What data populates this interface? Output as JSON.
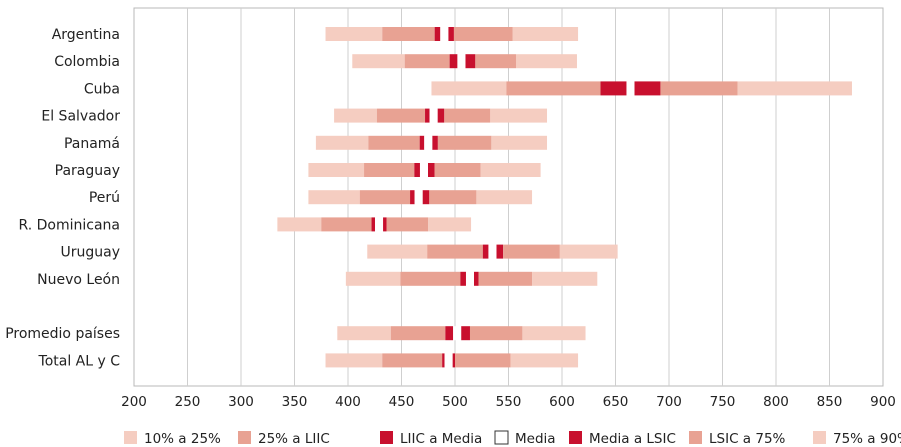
{
  "chart_data": {
    "type": "bar",
    "subtype": "horizontal-stacked-percentile",
    "xlim": [
      200,
      900
    ],
    "xticks": [
      "200",
      "250",
      "300",
      "350",
      "400",
      "450",
      "500",
      "550",
      "600",
      "650",
      "700",
      "750",
      "800",
      "850",
      "900"
    ],
    "grid": true,
    "legend_position": "bottom",
    "categories": [
      "Argentina",
      "Colombia",
      "Cuba",
      "El Salvador",
      "Panamá",
      "Paraguay",
      "Perú",
      "R. Dominicana",
      "Uruguay",
      "Nuevo León",
      "",
      "Promedio países",
      "Total AL y C"
    ],
    "rows": [
      {
        "label": "Argentina",
        "p10": 379,
        "p25": 432,
        "liic": 481,
        "mean": 490,
        "lsic": 499,
        "p75": 554,
        "p90": 615
      },
      {
        "label": "Colombia",
        "p10": 404,
        "p25": 453,
        "liic": 495,
        "mean": 506,
        "lsic": 519,
        "p75": 557,
        "p90": 614
      },
      {
        "label": "Cuba",
        "p10": 478,
        "p25": 548,
        "liic": 636,
        "mean": 664,
        "lsic": 692,
        "p75": 764,
        "p90": 871
      },
      {
        "label": "El Salvador",
        "p10": 387,
        "p25": 427,
        "liic": 472,
        "mean": 480,
        "lsic": 490,
        "p75": 533,
        "p90": 586
      },
      {
        "label": "Panamá",
        "p10": 370,
        "p25": 419,
        "liic": 467,
        "mean": 475,
        "lsic": 484,
        "p75": 534,
        "p90": 586
      },
      {
        "label": "Paraguay",
        "p10": 363,
        "p25": 415,
        "liic": 462,
        "mean": 471,
        "lsic": 481,
        "p75": 524,
        "p90": 580
      },
      {
        "label": "Perú",
        "p10": 363,
        "p25": 411,
        "liic": 458,
        "mean": 466,
        "lsic": 476,
        "p75": 520,
        "p90": 572
      },
      {
        "label": "R. Dominicana",
        "p10": 334,
        "p25": 375,
        "liic": 422,
        "mean": 429,
        "lsic": 436,
        "p75": 475,
        "p90": 515
      },
      {
        "label": "Uruguay",
        "p10": 418,
        "p25": 474,
        "liic": 526,
        "mean": 535,
        "lsic": 545,
        "p75": 598,
        "p90": 652
      },
      {
        "label": "Nuevo León",
        "p10": 398,
        "p25": 449,
        "liic": 505,
        "mean": 514,
        "lsic": 522,
        "p75": 572,
        "p90": 633
      },
      null,
      {
        "label": "Promedio países",
        "p10": 390,
        "p25": 440,
        "liic": 491,
        "mean": 502,
        "lsic": 514,
        "p75": 563,
        "p90": 622
      },
      {
        "label": "Total AL y C",
        "p10": 379,
        "p25": 432,
        "liic": 488,
        "mean": 494,
        "lsic": 500,
        "p75": 552,
        "p90": 615
      }
    ],
    "legend": [
      {
        "label": "10% a 25%",
        "color": "#f5cdc1",
        "kind": "fill"
      },
      {
        "label": "25% a LIIC",
        "color": "#e8a293",
        "kind": "fill"
      },
      {
        "label": "LIIC a Media",
        "color": "#c8102e",
        "kind": "fill"
      },
      {
        "label": "Media",
        "color": "#ffffff",
        "kind": "outline"
      },
      {
        "label": "Media a LSIC",
        "color": "#c8102e",
        "kind": "fill"
      },
      {
        "label": "LSIC a 75%",
        "color": "#e8a293",
        "kind": "fill"
      },
      {
        "label": "75% a 90%",
        "color": "#f5cdc1",
        "kind": "fill"
      }
    ]
  }
}
